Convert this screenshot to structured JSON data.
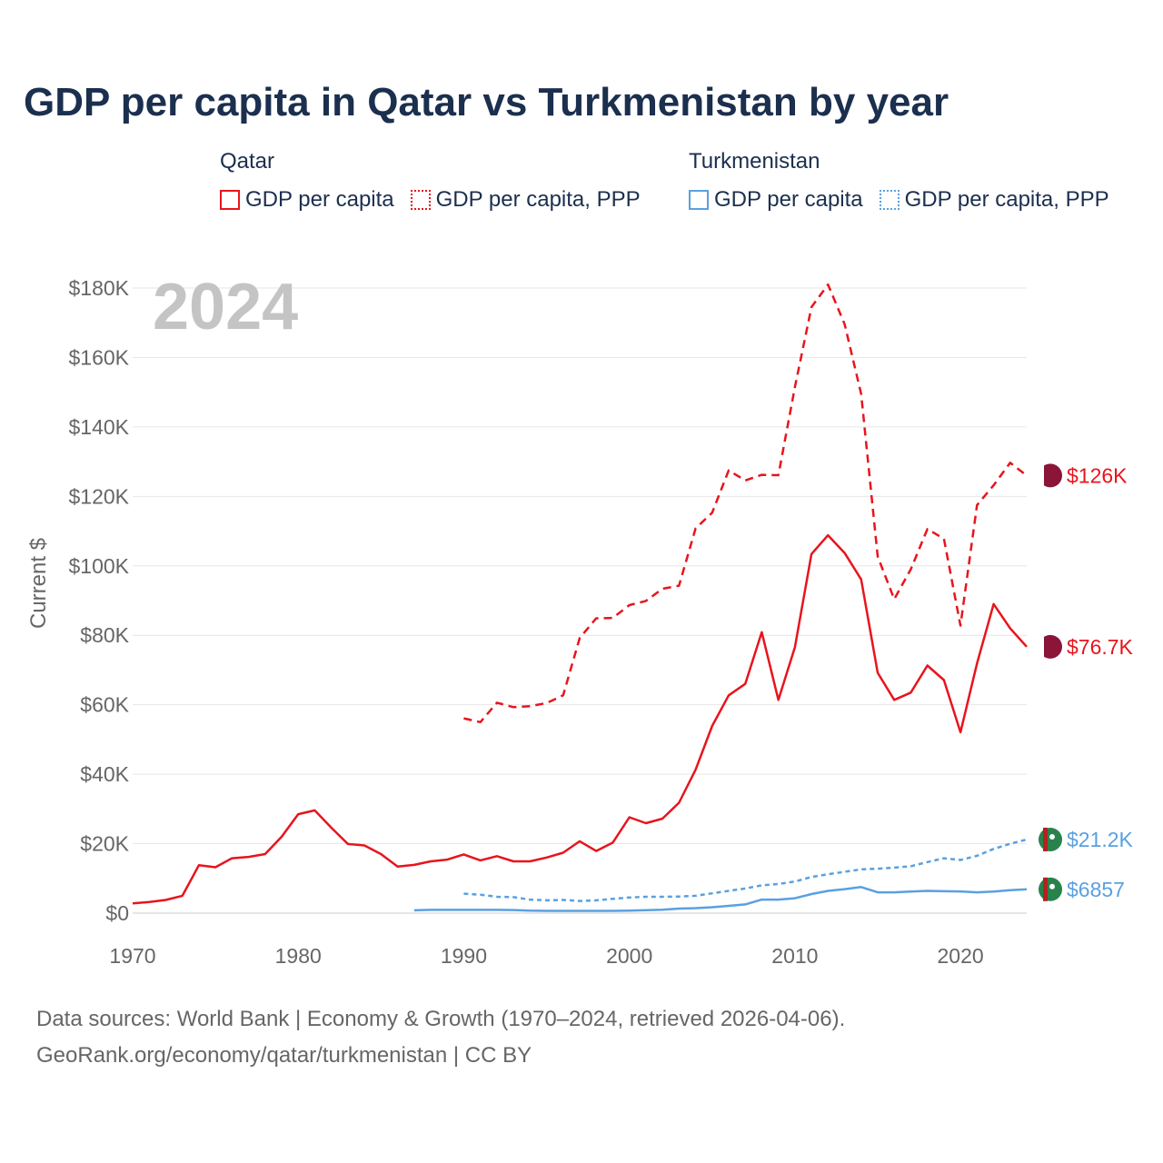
{
  "title": "GDP per capita in Qatar vs Turkmenistan by year",
  "legend": {
    "qatar": {
      "country": "Qatar",
      "items": [
        "GDP per capita",
        "GDP per capita, PPP"
      ]
    },
    "turkmenistan": {
      "country": "Turkmenistan",
      "items": [
        "GDP per capita",
        "GDP per capita, PPP"
      ]
    }
  },
  "year_watermark": "2024",
  "colors": {
    "qatar": "#e8141c",
    "turkmenistan": "#5aa0e0",
    "title": "#1b2f4e",
    "axis_text": "#666666",
    "watermark": "#c4c4c4"
  },
  "chart_data": {
    "type": "line",
    "title": "GDP per capita in Qatar vs Turkmenistan by year",
    "xlabel": "",
    "ylabel": "Current $",
    "xlim": [
      1970,
      2024
    ],
    "ylim": [
      0,
      180000
    ],
    "x_ticks": [
      1970,
      1980,
      1990,
      2000,
      2010,
      2020
    ],
    "y_ticks": [
      0,
      20000,
      40000,
      60000,
      80000,
      100000,
      120000,
      140000,
      160000,
      180000
    ],
    "y_tick_labels": [
      "$0",
      "$20K",
      "$40K",
      "$60K",
      "$80K",
      "$100K",
      "$120K",
      "$140K",
      "$160K",
      "$180K"
    ],
    "grid": true,
    "series": [
      {
        "name": "Qatar GDP per capita",
        "color": "#e8141c",
        "dash": "solid",
        "end_label": "$76.7K",
        "x": [
          1970,
          1971,
          1972,
          1973,
          1974,
          1975,
          1976,
          1977,
          1978,
          1979,
          1980,
          1981,
          1982,
          1983,
          1984,
          1985,
          1986,
          1987,
          1988,
          1989,
          1990,
          1991,
          1992,
          1993,
          1994,
          1995,
          1996,
          1997,
          1998,
          1999,
          2000,
          2001,
          2002,
          2003,
          2004,
          2005,
          2006,
          2007,
          2008,
          2009,
          2010,
          2011,
          2012,
          2013,
          2014,
          2015,
          2016,
          2017,
          2018,
          2019,
          2020,
          2021,
          2022,
          2023,
          2024
        ],
        "values": [
          2800,
          3200,
          3800,
          5000,
          13800,
          13200,
          15800,
          16200,
          17000,
          22000,
          28500,
          29600,
          24600,
          19900,
          19500,
          17000,
          13400,
          13900,
          14900,
          15400,
          16900,
          15200,
          16400,
          14900,
          14900,
          16000,
          17400,
          20700,
          17900,
          20300,
          27600,
          25900,
          27200,
          31800,
          41300,
          53900,
          62700,
          66000,
          80900,
          61400,
          76600,
          103400,
          108800,
          103700,
          96100,
          69200,
          61400,
          63500,
          71300,
          67100,
          52100,
          71900,
          89000,
          82000,
          76700
        ]
      },
      {
        "name": "Qatar GDP per capita, PPP",
        "color": "#e8141c",
        "dash": "dashed",
        "end_label": "$126K",
        "x": [
          1990,
          1991,
          1992,
          1993,
          1994,
          1995,
          1996,
          1997,
          1998,
          1999,
          2000,
          2001,
          2002,
          2003,
          2004,
          2005,
          2006,
          2007,
          2008,
          2009,
          2010,
          2011,
          2012,
          2013,
          2014,
          2015,
          2016,
          2017,
          2018,
          2019,
          2020,
          2021,
          2022,
          2023,
          2024
        ],
        "values": [
          56100,
          55000,
          60600,
          59300,
          59600,
          60500,
          62700,
          79200,
          84900,
          85000,
          88700,
          89900,
          93400,
          94300,
          110800,
          115300,
          127500,
          124600,
          126200,
          126100,
          151500,
          174500,
          181000,
          169600,
          149500,
          102700,
          90400,
          99000,
          110600,
          107800,
          82800,
          117500,
          123200,
          129700,
          126000
        ]
      },
      {
        "name": "Turkmenistan GDP per capita",
        "color": "#5aa0e0",
        "dash": "solid",
        "end_label": "$6857",
        "x": [
          1987,
          1988,
          1989,
          1990,
          1991,
          1992,
          1993,
          1994,
          1995,
          1996,
          1997,
          1998,
          1999,
          2000,
          2001,
          2002,
          2003,
          2004,
          2005,
          2006,
          2007,
          2008,
          2009,
          2010,
          2011,
          2012,
          2013,
          2014,
          2015,
          2016,
          2017,
          2018,
          2019,
          2020,
          2021,
          2022,
          2023,
          2024
        ],
        "values": [
          800,
          950,
          950,
          950,
          950,
          950,
          900,
          700,
          650,
          650,
          650,
          650,
          650,
          700,
          850,
          1000,
          1300,
          1450,
          1700,
          2100,
          2500,
          3900,
          3900,
          4300,
          5500,
          6400,
          6900,
          7500,
          6000,
          6000,
          6200,
          6400,
          6300,
          6250,
          6000,
          6200,
          6600,
          6857
        ]
      },
      {
        "name": "Turkmenistan GDP per capita, PPP",
        "color": "#5aa0e0",
        "dash": "dotted",
        "end_label": "$21.2K",
        "x": [
          1990,
          1991,
          1992,
          1993,
          1994,
          1995,
          1996,
          1997,
          1998,
          1999,
          2000,
          2001,
          2002,
          2003,
          2004,
          2005,
          2006,
          2007,
          2008,
          2009,
          2010,
          2011,
          2012,
          2013,
          2014,
          2015,
          2016,
          2017,
          2018,
          2019,
          2020,
          2021,
          2022,
          2023,
          2024
        ],
        "values": [
          5600,
          5300,
          4700,
          4600,
          3900,
          3700,
          3800,
          3500,
          3700,
          4100,
          4500,
          4700,
          4700,
          4800,
          5000,
          5700,
          6400,
          7100,
          8000,
          8400,
          9100,
          10400,
          11200,
          11900,
          12600,
          12800,
          13100,
          13500,
          14700,
          15800,
          15300,
          16500,
          18500,
          20000,
          21200
        ]
      }
    ]
  },
  "source": {
    "line1": "Data sources: World Bank | Economy & Growth (1970–2024, retrieved 2026-04-06).",
    "line2": "GeoRank.org/economy/qatar/turkmenistan | CC BY"
  }
}
